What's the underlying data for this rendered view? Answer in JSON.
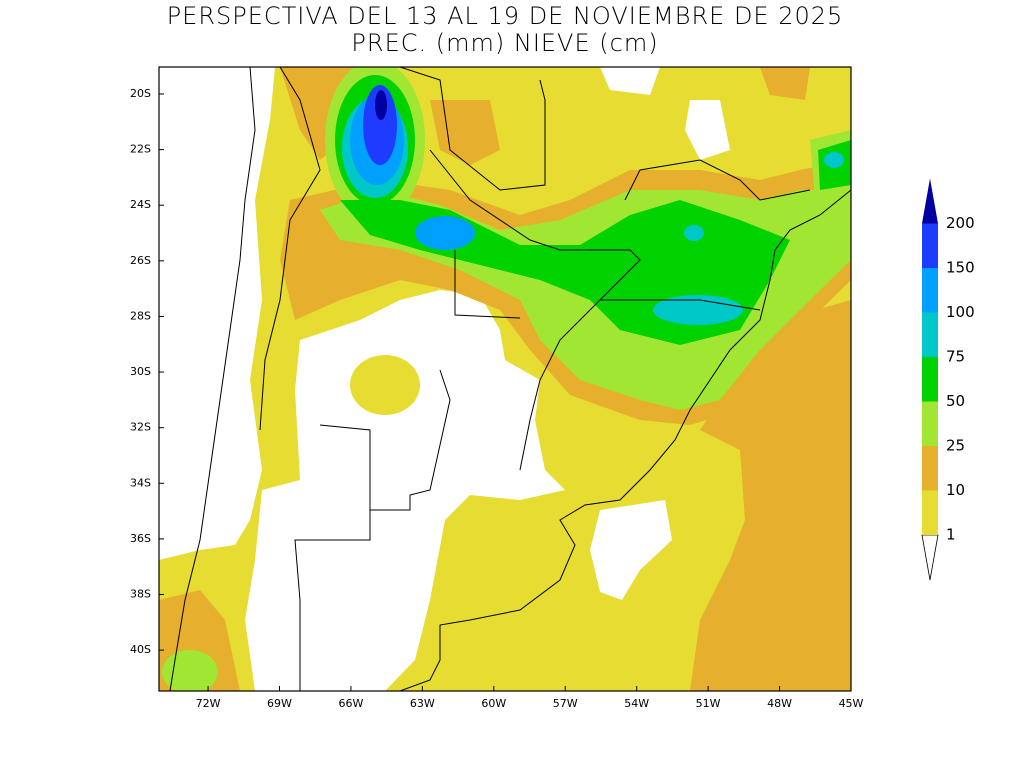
{
  "map": {
    "title": "PERSPECTIVA DEL 13 AL 19 DE NOVIEMBRE DE 2025",
    "subtitle": "PREC. (mm) NIEVE (cm)",
    "xlim": [
      -74.06,
      -45
    ],
    "ylim": [
      -41.47,
      -19.03
    ],
    "xticks": [
      {
        "value": -72,
        "label": "72W"
      },
      {
        "value": -69,
        "label": "69W"
      },
      {
        "value": -66,
        "label": "66W"
      },
      {
        "value": -63,
        "label": "63W"
      },
      {
        "value": -60,
        "label": "60W"
      },
      {
        "value": -57,
        "label": "57W"
      },
      {
        "value": -54,
        "label": "54W"
      },
      {
        "value": -51,
        "label": "51W"
      },
      {
        "value": -48,
        "label": "48W"
      },
      {
        "value": -45,
        "label": "45W"
      }
    ],
    "yticks": [
      {
        "value": -20,
        "label": "20S"
      },
      {
        "value": -22,
        "label": "22S"
      },
      {
        "value": -24,
        "label": "24S"
      },
      {
        "value": -26,
        "label": "26S"
      },
      {
        "value": -28,
        "label": "28S"
      },
      {
        "value": -30,
        "label": "30S"
      },
      {
        "value": -32,
        "label": "32S"
      },
      {
        "value": -34,
        "label": "34S"
      },
      {
        "value": -36,
        "label": "36S"
      },
      {
        "value": -38,
        "label": "38S"
      },
      {
        "value": -40,
        "label": "40S"
      }
    ],
    "colorbar": {
      "levels": [
        1,
        10,
        25,
        50,
        75,
        100,
        150,
        200
      ],
      "colors": [
        "#ffffff",
        "#e6dc32",
        "#e6af2d",
        "#a0e632",
        "#00d200",
        "#00c8c8",
        "#00a0ff",
        "#1e3cff",
        "#0000a0"
      ]
    }
  }
}
